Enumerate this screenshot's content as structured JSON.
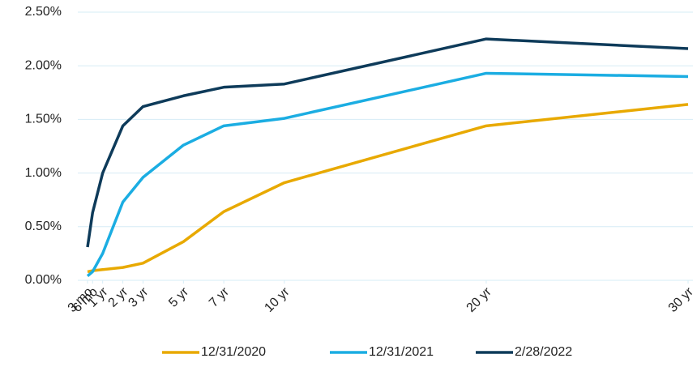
{
  "chart_data": {
    "type": "line",
    "x": [
      0.25,
      0.5,
      1,
      2,
      3,
      5,
      7,
      10,
      20,
      30
    ],
    "xlim": [
      0.25,
      30
    ],
    "xticks": [
      {
        "value": 0.25,
        "label": "3 mo"
      },
      {
        "value": 0.5,
        "label": "6 mo"
      },
      {
        "value": 1,
        "label": "1 yr"
      },
      {
        "value": 2,
        "label": "2 yr"
      },
      {
        "value": 3,
        "label": "3 yr"
      },
      {
        "value": 5,
        "label": "5 yr"
      },
      {
        "value": 7,
        "label": "7 yr"
      },
      {
        "value": 10,
        "label": "10 yr"
      },
      {
        "value": 20,
        "label": "20 yr"
      },
      {
        "value": 30,
        "label": "30 yr"
      }
    ],
    "ylim": [
      0,
      2.5
    ],
    "yticks": [
      {
        "value": 0,
        "label": "0.00%"
      },
      {
        "value": 0.5,
        "label": "0.50%"
      },
      {
        "value": 1,
        "label": "1.00%"
      },
      {
        "value": 1.5,
        "label": "1.50%"
      },
      {
        "value": 2,
        "label": "2.00%"
      },
      {
        "value": 2.5,
        "label": "2.50%"
      }
    ],
    "grid": true,
    "legend": "bottom",
    "series": [
      {
        "name": "12/31/2020",
        "color": "#e8a900",
        "values": [
          0.08,
          0.09,
          0.1,
          0.12,
          0.16,
          0.36,
          0.64,
          0.91,
          1.44,
          1.64
        ]
      },
      {
        "name": "12/31/2021",
        "color": "#1bade2",
        "values": [
          0.04,
          0.08,
          0.25,
          0.73,
          0.96,
          1.26,
          1.44,
          1.51,
          1.93,
          1.9
        ]
      },
      {
        "name": "2/28/2022",
        "color": "#0e3b5a",
        "values": [
          0.31,
          0.63,
          1.0,
          1.44,
          1.62,
          1.72,
          1.8,
          1.83,
          2.25,
          2.16
        ]
      }
    ]
  }
}
